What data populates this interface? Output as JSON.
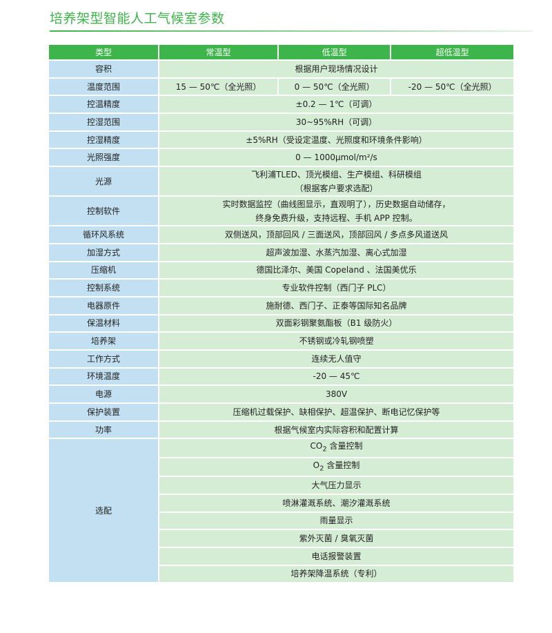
{
  "title": "培养架型智能人工气候室参数",
  "colors": {
    "accent": "#3db54a",
    "key_bg": "#c2e0f1",
    "value_bg": "#d5ecd5"
  },
  "header": [
    "类型",
    "常温型",
    "低温型",
    "超低温型"
  ],
  "temp_row": {
    "label": "温度范围",
    "values": [
      "15 — 50℃（全光照）",
      "0 — 50℃（全光照）",
      "-20 — 50℃（全光照）"
    ]
  },
  "rows_a": [
    {
      "label": "容积",
      "value": "根据用户现场情况设计"
    }
  ],
  "rows_b": [
    {
      "label": "控温精度",
      "value": "±0.2 — 1℃（可调）"
    },
    {
      "label": "控湿范围",
      "value": "30~95%RH（可调）"
    },
    {
      "label": "控湿精度",
      "value": "±5%RH（受设定温度、光照度和环境条件影响）"
    },
    {
      "label": "光照强度",
      "value": "0 — 1000μmol/m²/s"
    }
  ],
  "light_source": {
    "label": "光源",
    "lines": [
      "飞利浦TLED、顶光模组、生产模组、科研模组",
      "（根据客户要求选配）"
    ]
  },
  "software": {
    "label": "控制软件",
    "lines": [
      "实时数据监控（曲线图显示，直观明了），历史数据自动储存，",
      "终身免费升级，支持远程、手机 APP 控制。"
    ]
  },
  "rows_c": [
    {
      "label": "循环风系统",
      "value": "双侧送风，顶部回风 / 三面送风，顶部回风 / 多点多风道送风"
    },
    {
      "label": "加湿方式",
      "value": "超声波加湿、水蒸汽加湿、离心式加湿"
    },
    {
      "label": "压缩机",
      "value": "德国比泽尔、美国 Copeland 、法国美优乐"
    },
    {
      "label": "控制系统",
      "value": "专业软件控制（西门子 PLC）"
    },
    {
      "label": "电器原件",
      "value": "施耐德、西门子、正泰等国际知名品牌"
    },
    {
      "label": "保温材料",
      "value": "双面彩钢聚氨酯板（B1 级防火）"
    },
    {
      "label": "培养架",
      "value": "不锈钢或冷轧钢喷塑"
    },
    {
      "label": "工作方式",
      "value": "连续无人值守"
    },
    {
      "label": "环境温度",
      "value": "-20 — 45℃"
    },
    {
      "label": "电源",
      "value": "380V"
    },
    {
      "label": "保护装置",
      "value": "压缩机过载保护、缺相保护、超温保护、断电记忆保护等"
    },
    {
      "label": "功率",
      "value": "根据气候室内实际容积和配置计算"
    }
  ],
  "options": {
    "label": "选配",
    "co2": {
      "pre": "CO",
      "sub": "2",
      "post": " 含量控制"
    },
    "o2": {
      "pre": "O",
      "sub": "2",
      "post": " 含量控制"
    },
    "items": [
      "大气压力显示",
      "喷淋灌溉系统、潮汐灌溉系统",
      "雨量显示",
      "紫外灭菌 / 臭氧灭菌",
      "电话报警装置",
      "培养架降温系统（专利）"
    ]
  }
}
